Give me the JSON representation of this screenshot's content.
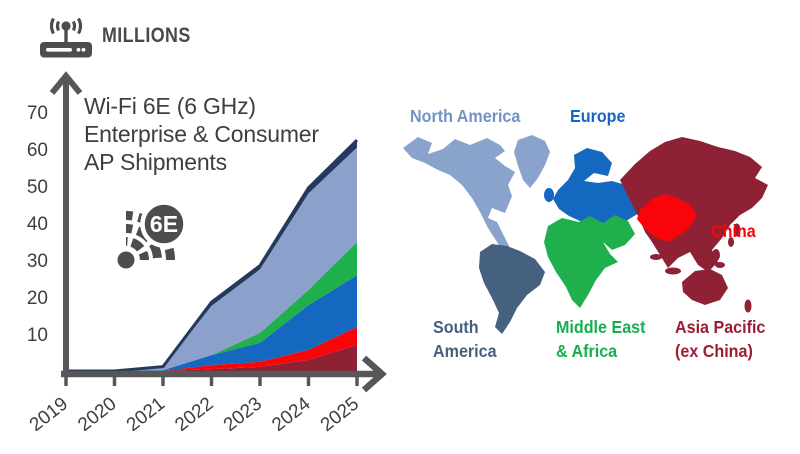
{
  "header": {
    "millions_label": "MILLIONS"
  },
  "chart": {
    "title_lines": [
      "Wi-Fi 6E (6 GHz)",
      "Enterprise & Consumer",
      "AP Shipments"
    ],
    "badge_label": "6E"
  },
  "chart_data": {
    "type": "area",
    "stacked": true,
    "title": "Wi-Fi 6E (6 GHz) Enterprise & Consumer AP Shipments",
    "unit": "Millions",
    "ylabel": "AP Shipments (Millions)",
    "ylim": [
      0,
      75
    ],
    "y_ticks": [
      10,
      20,
      30,
      40,
      50,
      60,
      70
    ],
    "grid": false,
    "legend_position": "map-region-labels",
    "topline_color": "#24395B",
    "categories": [
      "2019",
      "2020",
      "2021",
      "2022",
      "2023",
      "2024",
      "2025"
    ],
    "series": [
      {
        "key": "asia-pacific-ex-china",
        "name": "Asia Pacific (ex China)",
        "color": "#8E2134",
        "values": [
          0,
          0,
          0,
          0.5,
          1.1,
          3.0,
          7.0
        ]
      },
      {
        "key": "china",
        "name": "China",
        "color": "#F90509",
        "values": [
          0,
          0,
          0,
          1.1,
          1.4,
          2.7,
          4.9
        ]
      },
      {
        "key": "europe",
        "name": "Europe",
        "color": "#1468C0",
        "values": [
          0,
          0,
          0.2,
          2.7,
          5.1,
          12.1,
          14.0
        ]
      },
      {
        "key": "middle-east-africa",
        "name": "Middle East & Africa",
        "color": "#1FAF4C",
        "values": [
          0,
          0,
          0,
          0,
          2.7,
          4.1,
          9.0
        ]
      },
      {
        "key": "north-america",
        "name": "North America",
        "color": "#8BA1CB",
        "values": [
          0,
          0,
          0.8,
          13.3,
          17.2,
          26.1,
          25.5
        ]
      },
      {
        "key": "south-america",
        "name": "South America",
        "color": "#24395B",
        "values": [
          0,
          0,
          0.2,
          1.0,
          1.0,
          1.5,
          2.0
        ]
      }
    ]
  },
  "map": {
    "labels": {
      "north_america": "North America",
      "europe": "Europe",
      "china": "China",
      "south_america_1": "South",
      "south_america_2": "America",
      "mea_1": "Middle East",
      "mea_2": "& Africa",
      "asia_pacific_1": "Asia Pacific",
      "asia_pacific_2": "(ex China)"
    },
    "region_colors": {
      "north_america": "#8AA3CD",
      "south_america": "#46617F",
      "europe": "#1468C0",
      "middle_east_africa": "#1FAF4C",
      "china": "#F90509",
      "asia_pacific_ex_china": "#8E2134"
    }
  }
}
